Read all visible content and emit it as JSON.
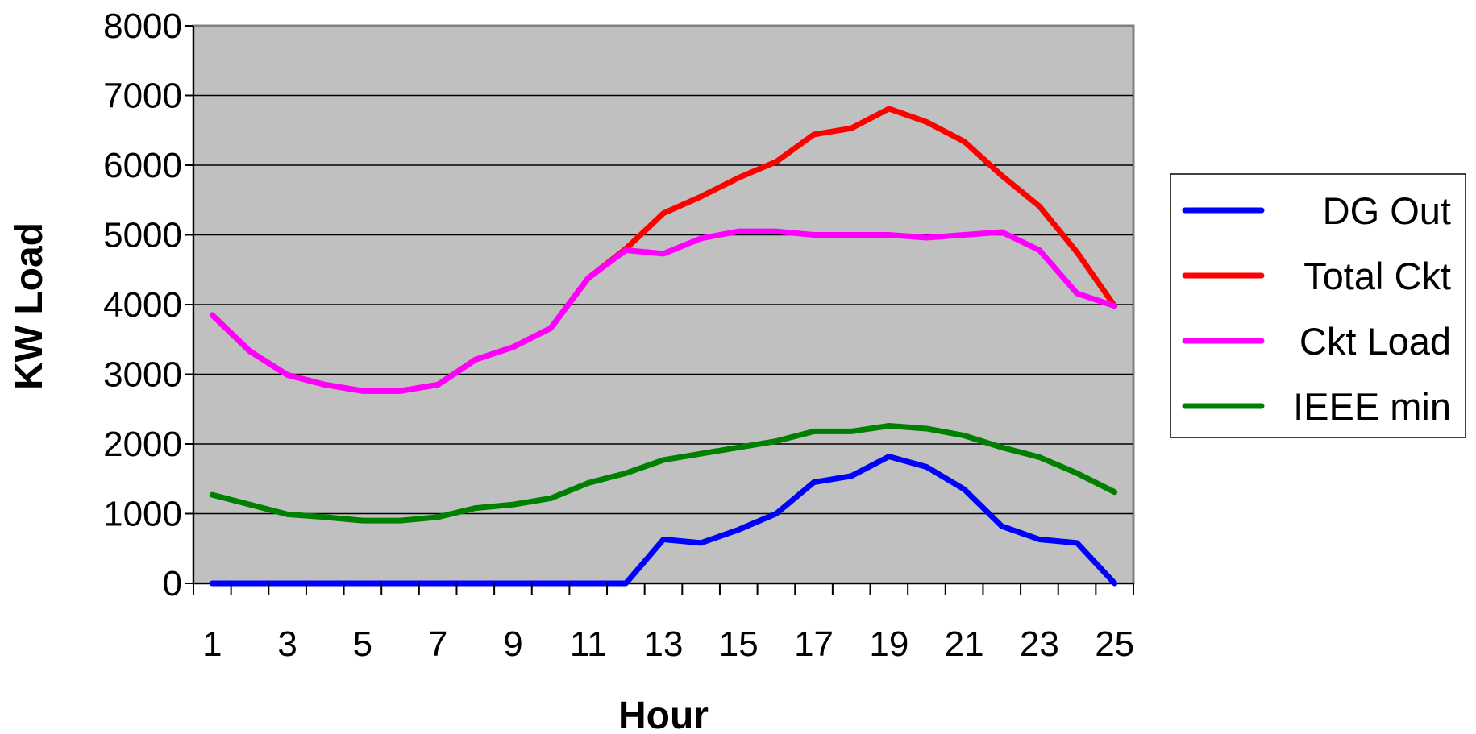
{
  "chart_data": {
    "type": "line",
    "xlabel": "Hour",
    "ylabel": "KW Load",
    "x": [
      1,
      2,
      3,
      4,
      5,
      6,
      7,
      8,
      9,
      10,
      11,
      12,
      13,
      14,
      15,
      16,
      17,
      18,
      19,
      20,
      21,
      22,
      23,
      24,
      25
    ],
    "x_tick_labels": [
      "1",
      "3",
      "5",
      "7",
      "9",
      "11",
      "13",
      "15",
      "17",
      "19",
      "21",
      "23",
      "25"
    ],
    "y_tick_labels": [
      "0",
      "1000",
      "2000",
      "3000",
      "4000",
      "5000",
      "6000",
      "7000",
      "8000"
    ],
    "xlim": [
      0.5,
      25.5
    ],
    "ylim": [
      0,
      8000
    ],
    "grid": "horizontal",
    "legend_position": "right",
    "background": "#c0c0c0",
    "series": [
      {
        "name": "DG Out",
        "color": "#0000ff",
        "values": [
          0,
          0,
          0,
          0,
          0,
          0,
          0,
          0,
          0,
          0,
          0,
          0,
          630,
          580,
          770,
          1000,
          1450,
          1540,
          1820,
          1670,
          1350,
          820,
          630,
          580,
          0
        ]
      },
      {
        "name": "Total Ckt",
        "color": "#ff0000",
        "values": [
          3850,
          3330,
          2990,
          2850,
          2760,
          2760,
          2850,
          3210,
          3390,
          3660,
          4380,
          4800,
          5310,
          5550,
          5820,
          6050,
          6440,
          6530,
          6810,
          6620,
          6340,
          5850,
          5410,
          4750,
          3980
        ]
      },
      {
        "name": "Ckt Load",
        "color": "#ff00ff",
        "values": [
          3850,
          3330,
          2990,
          2850,
          2760,
          2760,
          2850,
          3210,
          3390,
          3660,
          4380,
          4780,
          4730,
          4950,
          5050,
          5050,
          5000,
          5000,
          5000,
          4960,
          5000,
          5040,
          4780,
          4160,
          3980
        ]
      },
      {
        "name": "IEEE min",
        "color": "#008000",
        "values": [
          1270,
          1130,
          990,
          950,
          900,
          900,
          950,
          1080,
          1130,
          1220,
          1440,
          1580,
          1770,
          1860,
          1950,
          2040,
          2180,
          2180,
          2260,
          2220,
          2120,
          1950,
          1810,
          1580,
          1310
        ]
      }
    ]
  }
}
